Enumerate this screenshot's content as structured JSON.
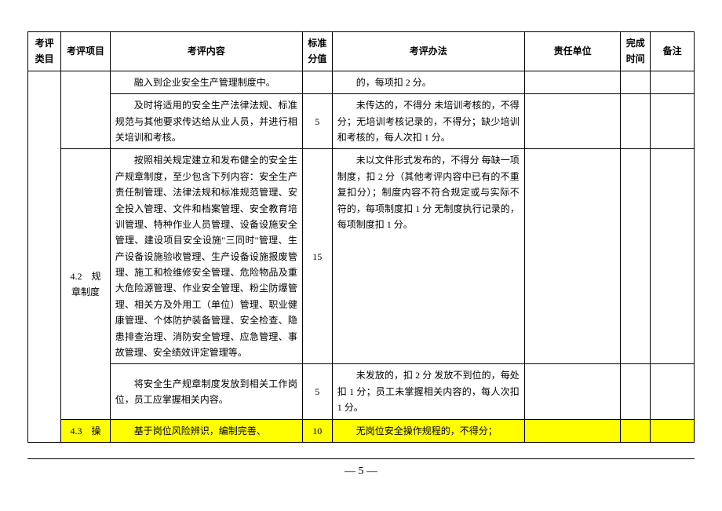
{
  "headers": {
    "category": "考评类目",
    "project": "考评项目",
    "content": "考评内容",
    "score": "标准分值",
    "method": "考评办法",
    "responsible": "责任单位",
    "time": "完成时间",
    "remark": "备注"
  },
  "rows": [
    {
      "project": "",
      "content": "融入到企业安全生产管理制度中。",
      "score": "",
      "method": "的，每项扣 2 分。",
      "highlight": false
    },
    {
      "project": "",
      "content": "及时将适用的安全生产法律法规、标准规范与其他要求传达给从业人员，并进行相关培训和考核。",
      "score": "5",
      "method": "未传达的，不得分 未培训考核的，不得分；无培训考核记录的，不得分；缺少培训和考核的，每人次扣 1 分。",
      "highlight": false
    },
    {
      "project": "4.2　规章制度",
      "content": "按照相关规定建立和发布健全的安全生产规章制度，至少包含下列内容：安全生产责任制管理、法律法规和标准规范管理、安全投入管理、文件和档案管理、安全教育培训管理、特种作业人员管理、设备设施安全管理、建设项目安全设施\"三同时\"管理、生产设备设施验收管理、生产设备设施报废管理、施工和检维修安全管理、危险物品及重大危险源管理、作业安全管理、粉尘防爆管理、相关方及外用工（单位）管理、职业健康管理、个体防护装备管理、安全检查、隐患排查治理、消防安全管理、应急管理、事故管理、安全绩效评定管理等。",
      "score": "15",
      "method": "未以文件形式发布的，不得分 每缺一项制度，扣 2 分（其他考评内容中已有的不重复扣分）；制度内容不符合规定或与实际不符的，每项制度扣 1 分 无制度执行记录的，每项制度扣 1 分。",
      "highlight": false,
      "project_rowspan": 2
    },
    {
      "project": "",
      "content": "将安全生产规章制度发放到相关工作岗位，员工应掌握相关内容。",
      "score": "5",
      "method": "未发放的，扣 2 分 发放不到位的，每处扣 1 分；员工未掌握相关内容的，每人次扣 1 分。",
      "highlight": false
    },
    {
      "project": "4.3　操",
      "content": "基于岗位风险辨识，编制完善、",
      "score": "10",
      "method": "无岗位安全操作规程的，不得分；",
      "highlight": true
    }
  ],
  "footer": {
    "page": "5"
  },
  "colors": {
    "highlight": "#ffff00",
    "border": "#000000",
    "background": "#ffffff",
    "text": "#000000"
  }
}
